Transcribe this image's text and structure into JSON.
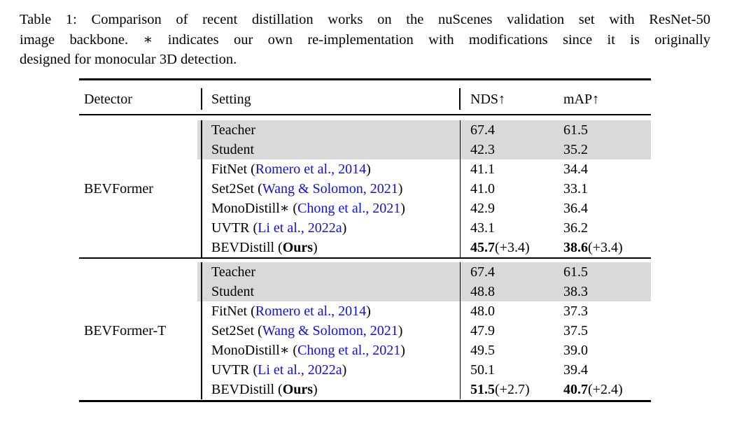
{
  "caption": {
    "lines": [
      "Table 1: Comparison of recent distillation works on the nuScenes validation set with ResNet-50",
      "image backbone. ∗ indicates our own re-implementation with modifications since it is originally",
      "designed for monocular 3D detection."
    ]
  },
  "table": {
    "columns": [
      "Detector",
      "Setting",
      "NDS↑",
      "mAP↑"
    ],
    "colors": {
      "citation": "#0f0fe8",
      "shade": "#d9d9d9",
      "rule": "#000000"
    },
    "groups": [
      {
        "detector": "BEVFormer",
        "rows": [
          {
            "shaded": true,
            "setting": {
              "name": "Teacher"
            },
            "nds": {
              "value": "67.4"
            },
            "map": {
              "value": "61.5"
            }
          },
          {
            "shaded": true,
            "setting": {
              "name": "Student"
            },
            "nds": {
              "value": "42.3"
            },
            "map": {
              "value": "35.2"
            }
          },
          {
            "setting": {
              "name": "FitNet",
              "citation": "Romero et al., 2014"
            },
            "nds": {
              "value": "41.1"
            },
            "map": {
              "value": "34.4"
            }
          },
          {
            "setting": {
              "name": "Set2Set",
              "citation": "Wang & Solomon, 2021"
            },
            "nds": {
              "value": "41.0"
            },
            "map": {
              "value": "33.1"
            }
          },
          {
            "setting": {
              "name": "MonoDistill∗",
              "citation": "Chong et al., 2021"
            },
            "nds": {
              "value": "42.9"
            },
            "map": {
              "value": "36.4"
            }
          },
          {
            "setting": {
              "name": "UVTR",
              "citation": "Li et al., 2022a"
            },
            "nds": {
              "value": "43.1"
            },
            "map": {
              "value": "36.2"
            }
          },
          {
            "setting": {
              "name": "BEVDistill",
              "ours": "Ours"
            },
            "nds": {
              "value": "45.7",
              "bold": true,
              "delta": "(+3.4)"
            },
            "map": {
              "value": "38.6",
              "bold": true,
              "delta": "(+3.4)"
            }
          }
        ]
      },
      {
        "detector": "BEVFormer-T",
        "rows": [
          {
            "shaded": true,
            "setting": {
              "name": "Teacher"
            },
            "nds": {
              "value": "67.4"
            },
            "map": {
              "value": "61.5"
            }
          },
          {
            "shaded": true,
            "setting": {
              "name": "Student"
            },
            "nds": {
              "value": "48.8"
            },
            "map": {
              "value": "38.3"
            }
          },
          {
            "setting": {
              "name": "FitNet",
              "citation": "Romero et al., 2014"
            },
            "nds": {
              "value": "48.0"
            },
            "map": {
              "value": "37.3"
            }
          },
          {
            "setting": {
              "name": "Set2Set",
              "citation": "Wang & Solomon, 2021"
            },
            "nds": {
              "value": "47.9"
            },
            "map": {
              "value": "37.5"
            }
          },
          {
            "setting": {
              "name": "MonoDistill∗",
              "citation": "Chong et al., 2021"
            },
            "nds": {
              "value": "49.5"
            },
            "map": {
              "value": "39.0"
            }
          },
          {
            "setting": {
              "name": "UVTR",
              "citation": "Li et al., 2022a"
            },
            "nds": {
              "value": "50.1"
            },
            "map": {
              "value": "39.4"
            }
          },
          {
            "setting": {
              "name": "BEVDistill",
              "ours": "Ours"
            },
            "nds": {
              "value": "51.5",
              "bold": true,
              "delta": "(+2.7)"
            },
            "map": {
              "value": "40.7",
              "bold": true,
              "delta": "(+2.4)"
            }
          }
        ]
      }
    ]
  }
}
